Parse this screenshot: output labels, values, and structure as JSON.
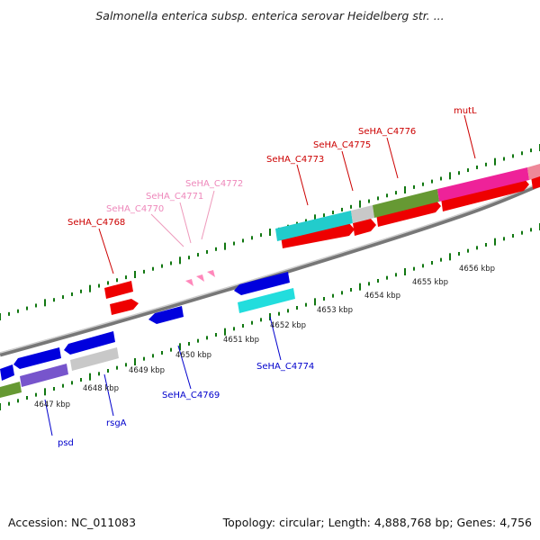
{
  "title": "Salmonella enterica subsp. enterica serovar Heidelberg str. ...",
  "footer": {
    "accession": "Accession: NC_011083",
    "summary": "Topology: circular; Length: 4,888,768 bp; Genes: 4,756"
  },
  "scale_labels": [
    "4647 kbp",
    "4648 kbp",
    "4649 kbp",
    "4650 kbp",
    "4651 kbp",
    "4652 kbp",
    "4653 kbp",
    "4654 kbp",
    "4655 kbp",
    "4656 kbp"
  ],
  "gene_labels": {
    "forward": [
      "SeHA_C4768",
      "SeHA_C4770",
      "SeHA_C4771",
      "SeHA_C4772",
      "SeHA_C4773",
      "SeHA_C4775",
      "SeHA_C4776",
      "mutL"
    ],
    "reverse": [
      "psd",
      "rsgA",
      "SeHA_C4769",
      "SeHA_C4774"
    ]
  },
  "colors": {
    "forward_label": "#cc0000",
    "faint_label": "#ee88bb",
    "reverse_label": "#0000cc",
    "cds_forward": "#ee0000",
    "cds_reverse": "#0000dd",
    "cog_cyan": "#22cccc",
    "cog_olive": "#669933",
    "cog_magenta": "#ee2299",
    "cog_grey": "#c8c8c8",
    "cog_purple": "#7755cc",
    "cog_pink": "#ee8899",
    "backbone": "#888888",
    "ticks": "#117711"
  }
}
